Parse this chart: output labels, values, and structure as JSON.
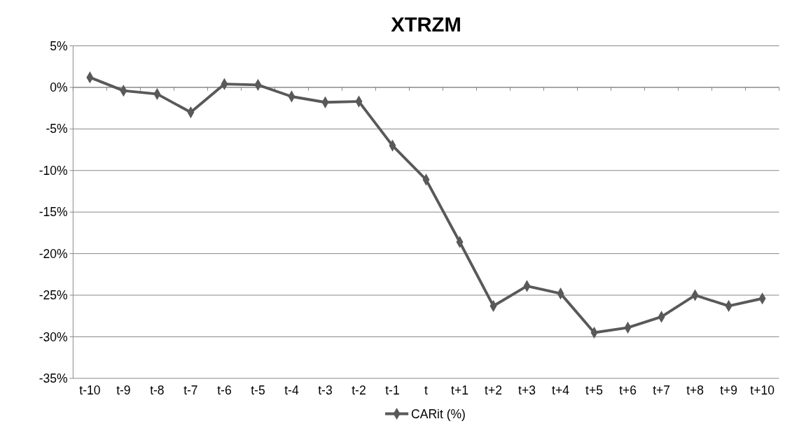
{
  "chart_data": {
    "type": "line",
    "title": "XTRZM",
    "categories": [
      "t-10",
      "t-9",
      "t-8",
      "t-7",
      "t-6",
      "t-5",
      "t-4",
      "t-3",
      "t-2",
      "t-1",
      "t",
      "t+1",
      "t+2",
      "t+3",
      "t+4",
      "t+5",
      "t+6",
      "t+7",
      "t+8",
      "t+9",
      "t+10"
    ],
    "series": [
      {
        "name": "CARit (%)",
        "color": "#595959",
        "values": [
          1.2,
          -0.4,
          -0.8,
          -3.0,
          0.4,
          0.3,
          -1.1,
          -1.8,
          -1.7,
          -7.0,
          -11.1,
          -18.6,
          -26.3,
          -23.9,
          -24.8,
          -29.5,
          -28.9,
          -27.6,
          -25.0,
          -26.3,
          -25.4
        ]
      }
    ],
    "ylim": [
      -35,
      5
    ],
    "yticks": [
      {
        "value": -35,
        "label": "-35%"
      },
      {
        "value": -30,
        "label": "-30%"
      },
      {
        "value": -25,
        "label": "-25%"
      },
      {
        "value": -20,
        "label": "-20%"
      },
      {
        "value": -15,
        "label": "-15%"
      },
      {
        "value": -10,
        "label": "-10%"
      },
      {
        "value": -5,
        "label": "-5%"
      },
      {
        "value": 0,
        "label": "0%"
      },
      {
        "value": 5,
        "label": "5%"
      }
    ],
    "grid": "y",
    "legend": "bottom",
    "marker": "diamond",
    "line_style": "solid"
  }
}
